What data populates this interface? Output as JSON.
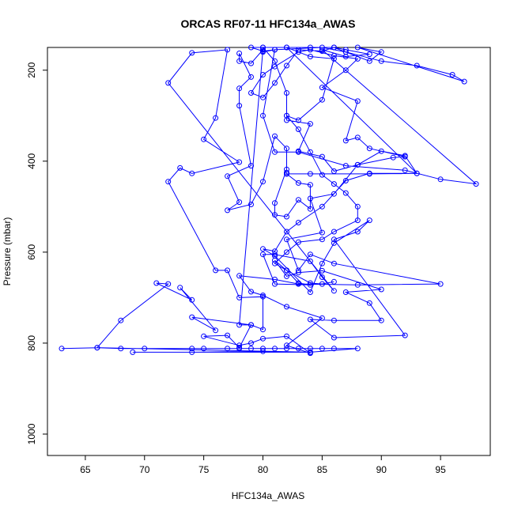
{
  "chart_data": {
    "type": "line",
    "title": "ORCAS RF07-11 HFC134a_AWAS",
    "xlabel": "HFC134a_AWAS",
    "ylabel": "Pressure (mbar)",
    "xlim": [
      61.8,
      99.2
    ],
    "ylim": [
      1047,
      150
    ],
    "y_reversed": true,
    "xticks": [
      65,
      70,
      75,
      80,
      85,
      90,
      95
    ],
    "yticks": [
      200,
      400,
      600,
      800,
      1000
    ],
    "grid": false,
    "legend": "none",
    "color": "#0000ff",
    "series": [
      {
        "points": [
          [
            63,
            812
          ],
          [
            66,
            810
          ],
          [
            68,
            812
          ],
          [
            70,
            812
          ],
          [
            74,
            812
          ],
          [
            75,
            812
          ],
          [
            77,
            812
          ],
          [
            78,
            812
          ],
          [
            79,
            812
          ],
          [
            80,
            812
          ],
          [
            81,
            812
          ],
          [
            82,
            812
          ],
          [
            83,
            812
          ],
          [
            84,
            812
          ],
          [
            85,
            812
          ],
          [
            86,
            812
          ],
          [
            88,
            812
          ],
          [
            84,
            820
          ],
          [
            69,
            820
          ],
          [
            74,
            820
          ],
          [
            80,
            818
          ],
          [
            84,
            820
          ],
          [
            66,
            810
          ],
          [
            68,
            750
          ],
          [
            72,
            670
          ],
          [
            71,
            668
          ],
          [
            74,
            705
          ],
          [
            73,
            678
          ],
          [
            76,
            772
          ],
          [
            74,
            743
          ],
          [
            79,
            760
          ],
          [
            78,
            810
          ],
          [
            77,
            783
          ],
          [
            75,
            785
          ],
          [
            78,
            805
          ],
          [
            79,
            800
          ],
          [
            80,
            790
          ],
          [
            82,
            785
          ],
          [
            84,
            822
          ],
          [
            82,
            805
          ],
          [
            85,
            745
          ],
          [
            82,
            720
          ],
          [
            80,
            695
          ],
          [
            79,
            687
          ],
          [
            78,
            652
          ],
          [
            81,
            660
          ],
          [
            83,
            670
          ],
          [
            88,
            672
          ],
          [
            95,
            670
          ],
          [
            86,
            625
          ],
          [
            84,
            605
          ],
          [
            83,
            640
          ],
          [
            82,
            572
          ],
          [
            85,
            557
          ],
          [
            84,
            482
          ],
          [
            86,
            472
          ],
          [
            88,
            408
          ],
          [
            90,
            378
          ],
          [
            92,
            388
          ],
          [
            93,
            427
          ],
          [
            89,
            427
          ],
          [
            87,
            443
          ],
          [
            85,
            500
          ],
          [
            83,
            535
          ],
          [
            82,
            555
          ],
          [
            81,
            598
          ],
          [
            80,
            593
          ],
          [
            81,
            608
          ],
          [
            84,
            688
          ],
          [
            85,
            625
          ],
          [
            86,
            580
          ],
          [
            89,
            530
          ],
          [
            88,
            555
          ],
          [
            86,
            572
          ],
          [
            92,
            783
          ],
          [
            86,
            788
          ],
          [
            84,
            748
          ],
          [
            86,
            750
          ],
          [
            90,
            750
          ],
          [
            89,
            712
          ],
          [
            87,
            688
          ],
          [
            90,
            682
          ],
          [
            85,
            641
          ],
          [
            83,
            645
          ],
          [
            82,
            653
          ],
          [
            81,
            618
          ],
          [
            82,
            640
          ],
          [
            83,
            668
          ],
          [
            84,
            672
          ],
          [
            81,
            670
          ],
          [
            80,
            605
          ],
          [
            81,
            605
          ],
          [
            84,
            620
          ],
          [
            85,
            655
          ],
          [
            86,
            685
          ],
          [
            72,
            228
          ],
          [
            74,
            162
          ],
          [
            77,
            155
          ],
          [
            76,
            305
          ],
          [
            75,
            352
          ],
          [
            78,
            402
          ],
          [
            74,
            427
          ],
          [
            73,
            415
          ],
          [
            72,
            445
          ],
          [
            76,
            640
          ],
          [
            77,
            640
          ],
          [
            78,
            700
          ],
          [
            80,
            698
          ],
          [
            80,
            770
          ],
          [
            79,
            760
          ],
          [
            78,
            760
          ],
          [
            80,
            155
          ],
          [
            79,
            185
          ],
          [
            78,
            180
          ],
          [
            78,
            163
          ],
          [
            79,
            215
          ],
          [
            78,
            240
          ],
          [
            78,
            278
          ],
          [
            79,
            410
          ],
          [
            77,
            433
          ],
          [
            78,
            490
          ],
          [
            77,
            508
          ],
          [
            79,
            495
          ],
          [
            80,
            445
          ],
          [
            81,
            345
          ],
          [
            82,
            372
          ],
          [
            82,
            418
          ],
          [
            81,
            492
          ],
          [
            81,
            518
          ],
          [
            82,
            522
          ],
          [
            83,
            485
          ],
          [
            84,
            505
          ],
          [
            84,
            452
          ],
          [
            83,
            448
          ],
          [
            82,
            428
          ],
          [
            82,
            425
          ],
          [
            82,
            428
          ],
          [
            84,
            428
          ],
          [
            89,
            428
          ],
          [
            93,
            427
          ],
          [
            82,
            150
          ],
          [
            84,
            170
          ],
          [
            86,
            175
          ],
          [
            85,
            265
          ],
          [
            83,
            310
          ],
          [
            82,
            300
          ],
          [
            82,
            310
          ],
          [
            84,
            318
          ],
          [
            83,
            378
          ],
          [
            85,
            390
          ],
          [
            86,
            422
          ],
          [
            88,
            408
          ],
          [
            91,
            392
          ],
          [
            92,
            390
          ],
          [
            89,
            372
          ],
          [
            88,
            348
          ],
          [
            87,
            355
          ],
          [
            88,
            268
          ],
          [
            85,
            238
          ],
          [
            87,
            200
          ],
          [
            88,
            175
          ],
          [
            86,
            168
          ],
          [
            84,
            155
          ],
          [
            83,
            160
          ],
          [
            81,
            192
          ],
          [
            80,
            210
          ],
          [
            79,
            250
          ],
          [
            80,
            260
          ],
          [
            81,
            228
          ],
          [
            82,
            190
          ],
          [
            83,
            155
          ],
          [
            85,
            158
          ],
          [
            86,
            150
          ],
          [
            87,
            160
          ],
          [
            89,
            180
          ],
          [
            90,
            160
          ],
          [
            88,
            150
          ],
          [
            97,
            225
          ],
          [
            96,
            210
          ],
          [
            93,
            190
          ],
          [
            90,
            180
          ],
          [
            87,
            160
          ],
          [
            85,
            150
          ],
          [
            81,
            155
          ],
          [
            80,
            158
          ],
          [
            79,
            150
          ],
          [
            80,
            150
          ],
          [
            82,
            150
          ],
          [
            84,
            150
          ],
          [
            86,
            150
          ],
          [
            87,
            155
          ],
          [
            89,
            165
          ],
          [
            87,
            170
          ],
          [
            85,
            155
          ],
          [
            98,
            450
          ],
          [
            95,
            440
          ],
          [
            92,
            420
          ],
          [
            87,
            410
          ],
          [
            83,
            380
          ],
          [
            81,
            380
          ],
          [
            80,
            300
          ],
          [
            81,
            155
          ],
          [
            80,
            160
          ],
          [
            80,
            150
          ],
          [
            81,
            180
          ],
          [
            82,
            250
          ],
          [
            82,
            300
          ],
          [
            83,
            330
          ],
          [
            84,
            380
          ],
          [
            85,
            430
          ],
          [
            86,
            450
          ],
          [
            87,
            470
          ],
          [
            88,
            500
          ],
          [
            88,
            530
          ],
          [
            86,
            555
          ],
          [
            85,
            572
          ],
          [
            83,
            578
          ],
          [
            82,
            600
          ],
          [
            81,
            625
          ],
          [
            82,
            640
          ],
          [
            84,
            668
          ],
          [
            85,
            670
          ],
          [
            86,
            665
          ]
        ]
      }
    ]
  }
}
